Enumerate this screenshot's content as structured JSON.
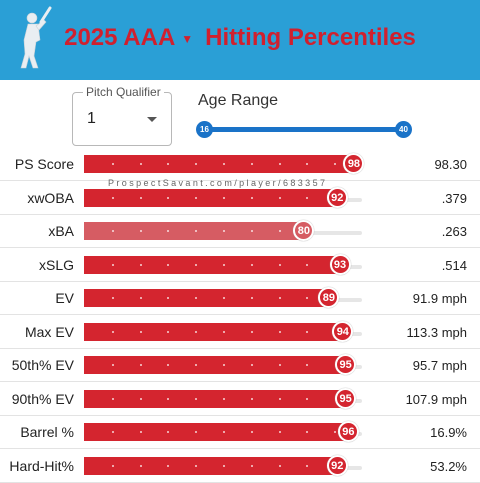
{
  "header": {
    "year_label": "2025 AAA",
    "subtitle": "Hitting Percentiles",
    "logo_icon": "batter-icon",
    "bg_color": "#2a9fd6",
    "title_color": "#d0202e"
  },
  "pitch_qualifier": {
    "label": "Pitch Qualifier",
    "value": "1"
  },
  "age_range": {
    "label": "Age Range",
    "min": "16",
    "max": "40"
  },
  "watermark": "ProspectSavant.com/player/683357",
  "metrics": [
    {
      "label": "PS Score",
      "percentile": 98,
      "value": "98.30",
      "percentile_text": "98"
    },
    {
      "label": "xwOBA",
      "percentile": 92,
      "value": ".379",
      "percentile_text": "92"
    },
    {
      "label": "xBA",
      "percentile": 80,
      "value": ".263",
      "percentile_text": "80"
    },
    {
      "label": "xSLG",
      "percentile": 93,
      "value": ".514",
      "percentile_text": "93"
    },
    {
      "label": "EV",
      "percentile": 89,
      "value": "91.9 mph",
      "percentile_text": "89"
    },
    {
      "label": "Max EV",
      "percentile": 94,
      "value": "113.3 mph",
      "percentile_text": "94"
    },
    {
      "label": "50th% EV",
      "percentile": 95,
      "value": "95.7 mph",
      "percentile_text": "95"
    },
    {
      "label": "90th% EV",
      "percentile": 95,
      "value": "107.9 mph",
      "percentile_text": "95"
    },
    {
      "label": "Barrel %",
      "percentile": 96,
      "value": "16.9%",
      "percentile_text": "96"
    },
    {
      "label": "Hard-Hit%",
      "percentile": 92,
      "value": "53.2%",
      "percentile_text": "92"
    }
  ],
  "colors": {
    "bar_high": "#d4252f",
    "bar_mid": "#d65c63",
    "slider": "#1a73c8"
  }
}
